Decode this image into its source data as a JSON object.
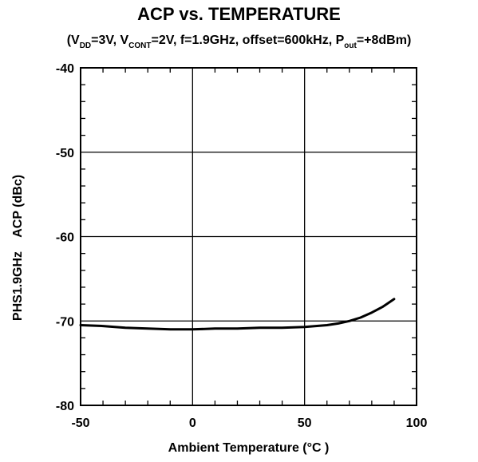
{
  "chart_data": {
    "type": "line",
    "title": "ACP vs. TEMPERATURE",
    "subtitle": {
      "p1": "(V",
      "s1": "DD",
      "p2": "=3V, V",
      "s2": "CONT",
      "p3": "=2V, f=1.9GHz, offset=600kHz, P",
      "s3": "out",
      "p4": "=+8dBm)"
    },
    "xlabel": "Ambient Temperature (°C )",
    "ylabel": "PHS1.9GHz    ACP (dBc)",
    "xlim": [
      -50,
      100
    ],
    "ylim": [
      -80,
      -40
    ],
    "xticks": [
      -50,
      0,
      50,
      100
    ],
    "yticks": [
      -80,
      -70,
      -60,
      -50,
      -40
    ],
    "grid": true,
    "series": [
      {
        "x": [
          -50,
          -40,
          -30,
          -20,
          -10,
          0,
          10,
          20,
          30,
          40,
          50,
          60,
          65,
          70,
          75,
          80,
          85,
          90
        ],
        "y": [
          -70.5,
          -70.6,
          -70.8,
          -70.9,
          -71.0,
          -71.0,
          -70.9,
          -70.9,
          -70.8,
          -70.8,
          -70.7,
          -70.5,
          -70.3,
          -70.0,
          -69.6,
          -69.0,
          -68.3,
          -67.4
        ]
      }
    ]
  }
}
